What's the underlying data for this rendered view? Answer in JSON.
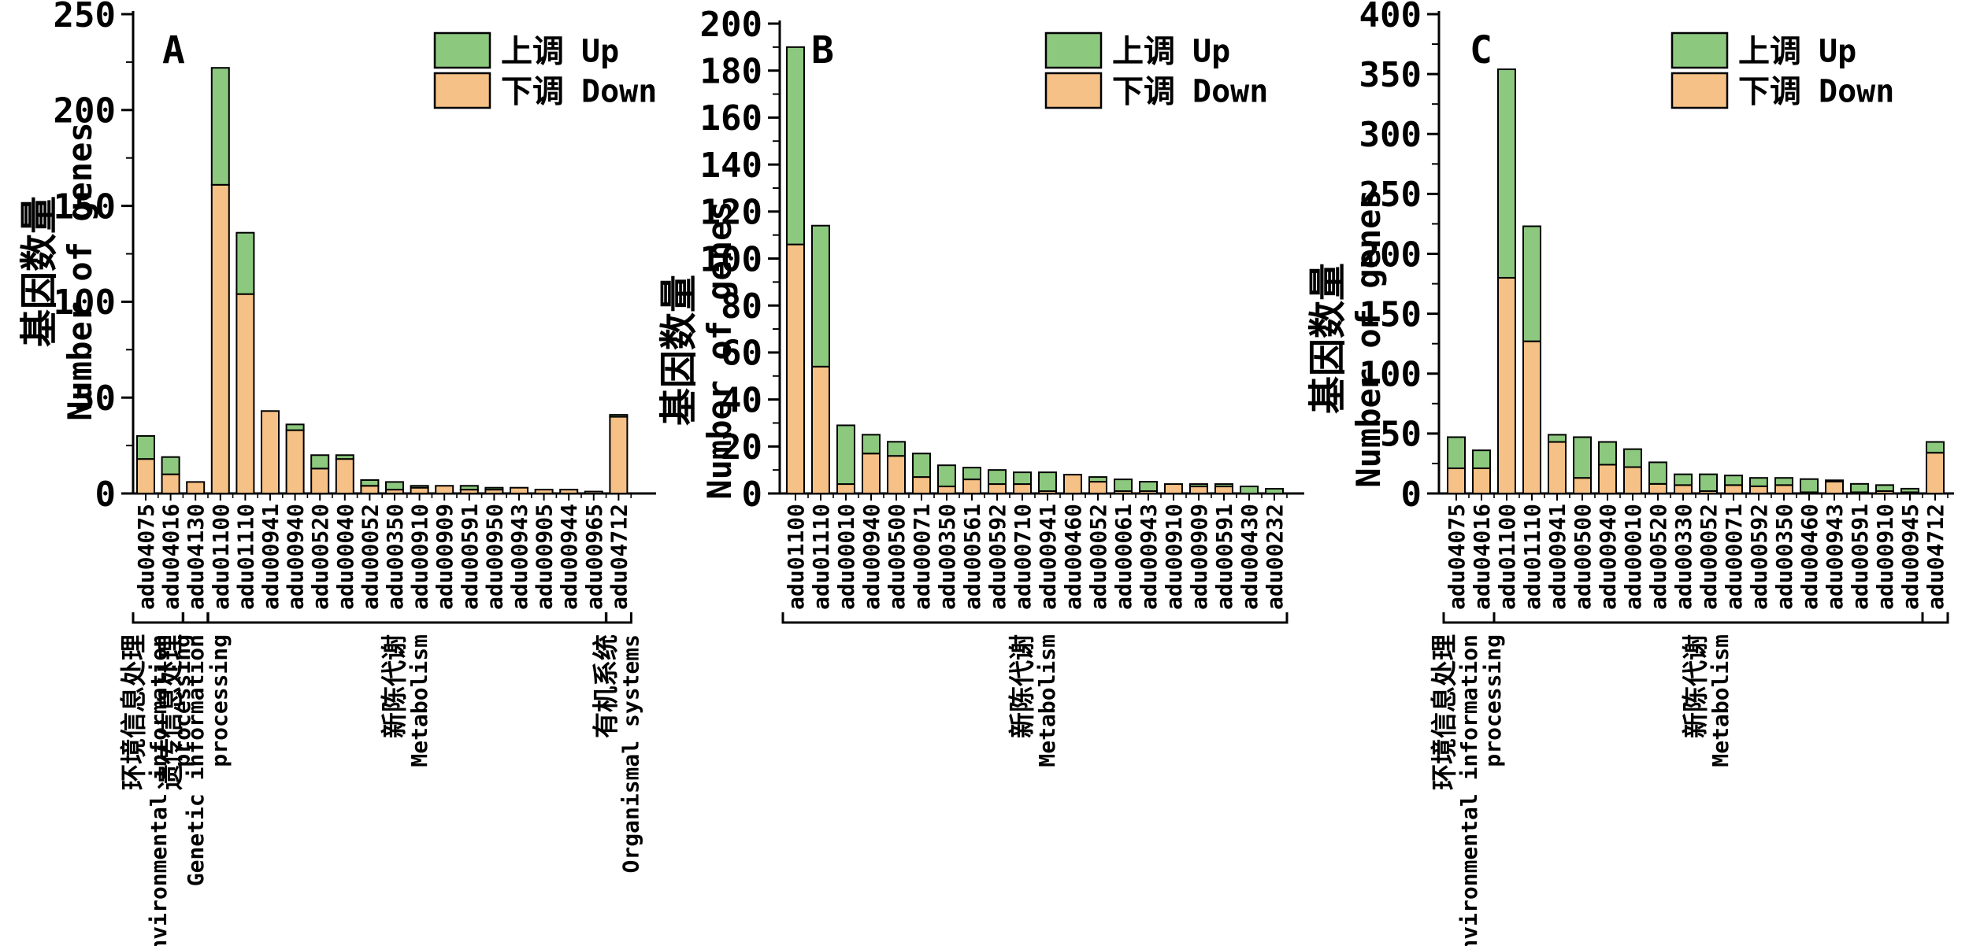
{
  "figure": {
    "description": "Three stacked bar charts (A, B, C) of KEGG pathway differentially expressed gene counts",
    "background": "#ffffff"
  },
  "colors": {
    "up": "#8cc87e",
    "down": "#f6c186",
    "outline": "#000000",
    "axis": "#000000"
  },
  "y_axis_title": {
    "cn": "基因数量",
    "en": "Number of genes"
  },
  "legend": {
    "up_cn": "上调",
    "up_en": "Up",
    "down_cn": "下调",
    "down_en": "Down"
  },
  "chart_data": [
    {
      "panel_letter": "A",
      "type": "bar",
      "stacked": true,
      "ylim": [
        0,
        250
      ],
      "ytick_step": 50,
      "yminor_step": 25,
      "grid": false,
      "legend_position": "top-right",
      "categories": [
        "adu04075",
        "adu04016",
        "adu04130",
        "adu01100",
        "adu01110",
        "adu00941",
        "adu00940",
        "adu00520",
        "adu00040",
        "adu00052",
        "adu00350",
        "adu00910",
        "adu00909",
        "adu00591",
        "adu00950",
        "adu00943",
        "adu00905",
        "adu00944",
        "adu00965",
        "adu04712"
      ],
      "series": [
        {
          "name": "下调 Down",
          "values": [
            18,
            10,
            6,
            161,
            104,
            43,
            33,
            13,
            18,
            4,
            2,
            3,
            4,
            2,
            2,
            3,
            2,
            2,
            1,
            40
          ]
        },
        {
          "name": "上调 Up",
          "values": [
            12,
            9,
            0,
            61,
            32,
            0,
            3,
            7,
            2,
            3,
            4,
            1,
            0,
            2,
            1,
            0,
            0,
            0,
            0,
            1
          ]
        }
      ],
      "groups": [
        {
          "cn": "环境信息处理",
          "en": [
            "Environmental information",
            "processing"
          ],
          "start": 0,
          "end": 1
        },
        {
          "cn": "遗传信息处理",
          "en": [
            "Genetic information",
            "processing"
          ],
          "start": 2,
          "end": 2
        },
        {
          "cn": "新陈代谢",
          "en": [
            "Metabolism"
          ],
          "start": 3,
          "end": 18
        },
        {
          "cn": "有机系统",
          "en": [
            "Organismal systems"
          ],
          "start": 19,
          "end": 19
        }
      ]
    },
    {
      "panel_letter": "B",
      "type": "bar",
      "stacked": true,
      "ylim": [
        0,
        200
      ],
      "ytick_step": 20,
      "yminor_step": 10,
      "grid": false,
      "legend_position": "top-right",
      "categories": [
        "adu01100",
        "adu01110",
        "adu00010",
        "adu00940",
        "adu00500",
        "adu00071",
        "adu00350",
        "adu00561",
        "adu00592",
        "adu00710",
        "adu00941",
        "adu00460",
        "adu00052",
        "adu00061",
        "adu00943",
        "adu00910",
        "adu00909",
        "adu00591",
        "adu00430",
        "adu00232"
      ],
      "series": [
        {
          "name": "下调 Down",
          "values": [
            106,
            54,
            4,
            17,
            16,
            7,
            3,
            6,
            4,
            4,
            1,
            8,
            5,
            1,
            1,
            4,
            3,
            3,
            0,
            0
          ]
        },
        {
          "name": "上调 Up",
          "values": [
            84,
            60,
            25,
            8,
            6,
            10,
            9,
            5,
            6,
            5,
            8,
            0,
            2,
            5,
            4,
            0,
            1,
            1,
            3,
            2
          ]
        }
      ],
      "groups": [
        {
          "cn": "新陈代谢",
          "en": [
            "Metabolism"
          ],
          "start": 0,
          "end": 19
        }
      ]
    },
    {
      "panel_letter": "C",
      "type": "bar",
      "stacked": true,
      "ylim": [
        0,
        400
      ],
      "ytick_step": 50,
      "yminor_step": 25,
      "grid": false,
      "legend_position": "top-right",
      "categories": [
        "adu04075",
        "adu04016",
        "adu01100",
        "adu01110",
        "adu00941",
        "adu00500",
        "adu00940",
        "adu00010",
        "adu00520",
        "adu00330",
        "adu00052",
        "adu00071",
        "adu00592",
        "adu00350",
        "adu00460",
        "adu00943",
        "adu00591",
        "adu00910",
        "adu00945",
        "adu04712"
      ],
      "series": [
        {
          "name": "下调 Down",
          "values": [
            21,
            21,
            180,
            127,
            43,
            13,
            24,
            22,
            8,
            7,
            2,
            7,
            6,
            7,
            1,
            10,
            1,
            2,
            1,
            34
          ]
        },
        {
          "name": "上调 Up",
          "values": [
            26,
            15,
            174,
            96,
            6,
            34,
            19,
            15,
            18,
            9,
            14,
            8,
            7,
            6,
            11,
            1,
            7,
            5,
            3,
            9
          ]
        }
      ],
      "groups": [
        {
          "cn": "环境信息处理",
          "en": [
            "Environmental information",
            "processing"
          ],
          "start": 0,
          "end": 1
        },
        {
          "cn": "新陈代谢",
          "en": [
            "Metabolism"
          ],
          "start": 2,
          "end": 18
        },
        {
          "cn": "",
          "en": [],
          "start": 19,
          "end": 19
        }
      ]
    }
  ]
}
